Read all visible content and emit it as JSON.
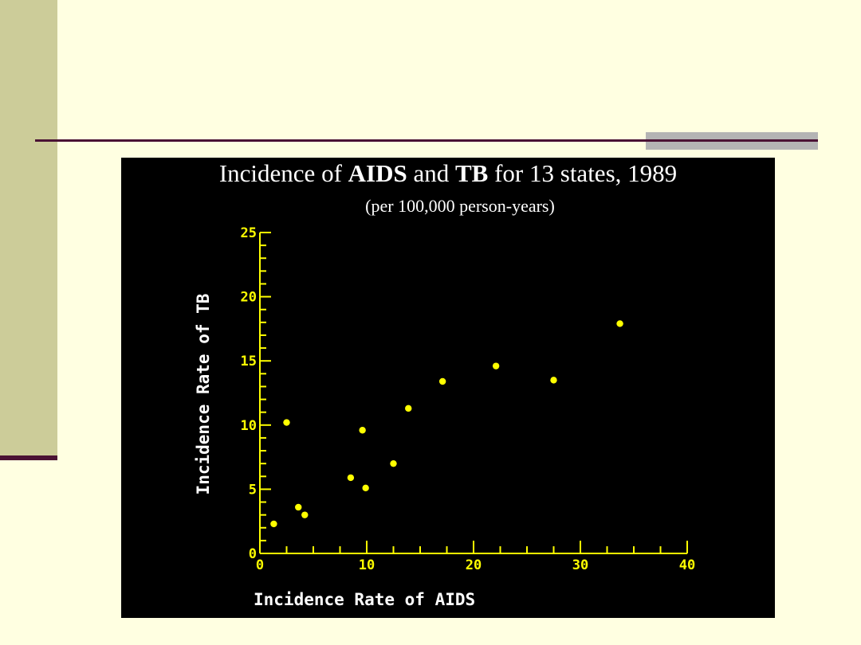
{
  "colors": {
    "background": "#ffffe1",
    "side_strip": "#cccc99",
    "rule": "#4a1234",
    "rule_accent": "#b4b4b4",
    "chart_background": "#000000",
    "axis": "#ffff00",
    "points": "#ffff00",
    "text": "#ffffff"
  },
  "chart_data": {
    "type": "scatter",
    "title_parts": [
      {
        "text": "Incidence of ",
        "bold": false
      },
      {
        "text": "AIDS",
        "bold": true
      },
      {
        "text": " and ",
        "bold": false
      },
      {
        "text": "TB",
        "bold": true
      },
      {
        "text": " for 13 states, 1989",
        "bold": false
      }
    ],
    "subtitle": "(per 100,000 person-years)",
    "xlabel": "Incidence Rate of AIDS",
    "ylabel": "Incidence Rate of TB",
    "xlim": [
      0,
      40
    ],
    "ylim": [
      0,
      25
    ],
    "x_ticks": [
      0,
      10,
      20,
      30,
      40
    ],
    "y_ticks": [
      0,
      5,
      10,
      15,
      20,
      25
    ],
    "grid": false,
    "points": [
      {
        "x": 1.3,
        "y": 2.3
      },
      {
        "x": 2.5,
        "y": 10.2
      },
      {
        "x": 3.6,
        "y": 3.6
      },
      {
        "x": 4.2,
        "y": 3.0
      },
      {
        "x": 8.5,
        "y": 5.9
      },
      {
        "x": 9.6,
        "y": 9.6
      },
      {
        "x": 9.9,
        "y": 5.1
      },
      {
        "x": 12.5,
        "y": 7.0
      },
      {
        "x": 13.9,
        "y": 11.3
      },
      {
        "x": 17.1,
        "y": 13.4
      },
      {
        "x": 22.1,
        "y": 14.6
      },
      {
        "x": 27.5,
        "y": 13.5
      },
      {
        "x": 33.7,
        "y": 17.9
      }
    ]
  }
}
